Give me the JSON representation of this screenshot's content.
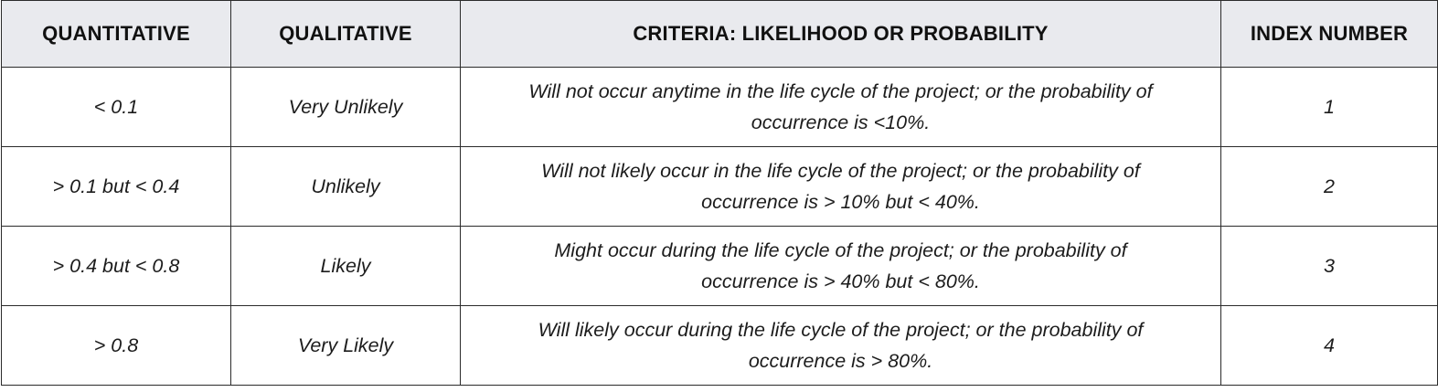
{
  "table": {
    "headers": [
      "QUANTITATIVE",
      "QUALITATIVE",
      "CRITERIA: LIKELIHOOD OR PROBABILITY",
      "INDEX NUMBER"
    ],
    "rows": [
      {
        "quantitative": "< 0.1",
        "qualitative": "Very Unlikely",
        "criteria_line1": "Will not occur anytime in the life cycle of the project; or the probability of",
        "criteria_line2": "occurrence is <10%.",
        "index": "1"
      },
      {
        "quantitative": "> 0.1 but < 0.4",
        "qualitative": "Unlikely",
        "criteria_line1": "Will not likely occur in the life cycle of the project; or the probability of",
        "criteria_line2": "occurrence is > 10% but < 40%.",
        "index": "2"
      },
      {
        "quantitative": "> 0.4 but < 0.8",
        "qualitative": "Likely",
        "criteria_line1": "Might occur during the life cycle of the project; or the probability of",
        "criteria_line2": "occurrence is > 40% but < 80%.",
        "index": "3"
      },
      {
        "quantitative": "> 0.8",
        "qualitative": "Very Likely",
        "criteria_line1": "Will likely occur during the life cycle of the project; or the probability of",
        "criteria_line2": "occurrence is > 80%.",
        "index": "4"
      }
    ]
  },
  "colors": {
    "header_background": "#e9eaee",
    "border": "#2b2b2b",
    "text": "#1a1a1a"
  }
}
